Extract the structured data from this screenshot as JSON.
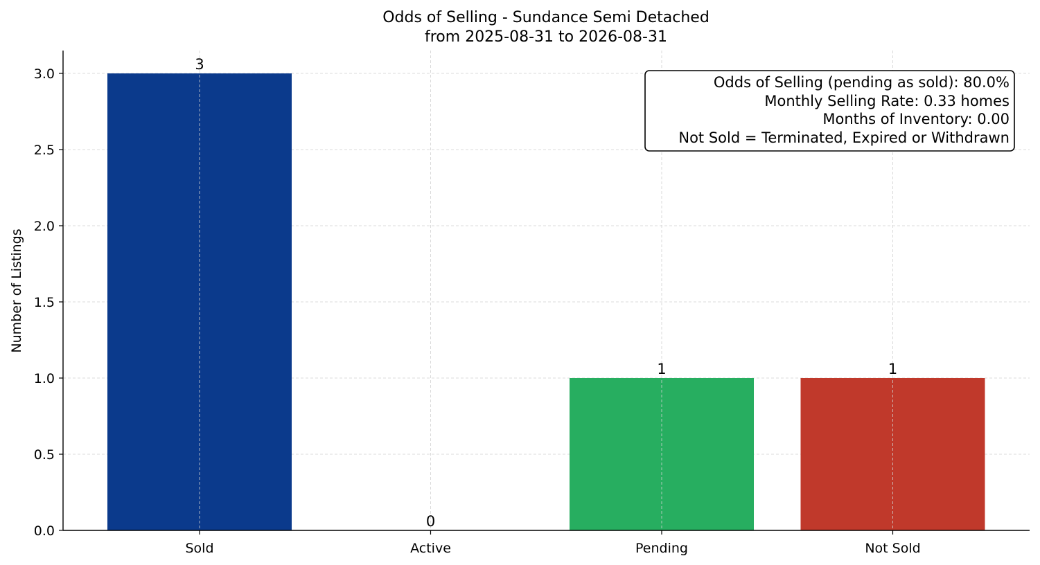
{
  "chart_data": {
    "type": "bar",
    "title": "Odds of Selling - Sundance Semi Detached",
    "subtitle": "from 2025-08-31 to 2026-08-31",
    "xlabel": "",
    "ylabel": "Number of Listings",
    "categories": [
      "Sold",
      "Active",
      "Pending",
      "Not Sold"
    ],
    "values": [
      3,
      0,
      1,
      1
    ],
    "colors": [
      "#0b3a8c",
      "#2a9d5c",
      "#27ae60",
      "#c0392b"
    ],
    "data_labels": [
      "3",
      "0",
      "1",
      "1"
    ],
    "ylim": [
      0,
      3.15
    ],
    "yticks": [
      0.0,
      0.5,
      1.0,
      1.5,
      2.0,
      2.5,
      3.0
    ],
    "ytick_labels": [
      "0.0",
      "0.5",
      "1.0",
      "1.5",
      "2.0",
      "2.5",
      "3.0"
    ],
    "grid": true,
    "annotation_placement": "top-right",
    "annotation_lines": [
      "Odds of Selling (pending as sold): 80.0%",
      "Monthly Selling Rate: 0.33 homes",
      "Months of Inventory: 0.00",
      "Not Sold = Terminated, Expired or Withdrawn"
    ]
  }
}
